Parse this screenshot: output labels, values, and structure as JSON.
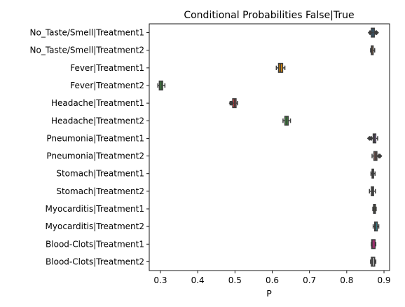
{
  "chart_data": {
    "type": "boxplot",
    "title": "Conditional Probabilities False|True",
    "xlabel": "P",
    "ylabel": "",
    "xlim": [
      0.27,
      0.915
    ],
    "xticks": [
      "0.3",
      "0.4",
      "0.5",
      "0.6",
      "0.7",
      "0.8",
      "0.9"
    ],
    "xtick_values": [
      0.3,
      0.4,
      0.5,
      0.6,
      0.7,
      0.8,
      0.9
    ],
    "orientation": "horizontal",
    "grid": false,
    "categories": [
      "No_Taste/Smell|Treatment1",
      "No_Taste/Smell|Treatment2",
      "Fever|Treatment1",
      "Fever|Treatment2",
      "Headache|Treatment1",
      "Headache|Treatment2",
      "Pneumonia|Treatment1",
      "Pneumonia|Treatment2",
      "Stomach|Treatment1",
      "Stomach|Treatment2",
      "Myocarditis|Treatment1",
      "Myocarditis|Treatment2",
      "Blood-Clots|Treatment1",
      "Blood-Clots|Treatment2"
    ],
    "boxes": [
      {
        "min": 0.862,
        "q1": 0.866,
        "median": 0.87,
        "q3": 0.874,
        "max": 0.879,
        "outliers": [
          0.863,
          0.878,
          0.88
        ],
        "color": "#3274a1"
      },
      {
        "min": 0.864,
        "q1": 0.866,
        "median": 0.868,
        "q3": 0.871,
        "max": 0.875,
        "outliers": [],
        "color": "#e1812c"
      },
      {
        "min": 0.611,
        "q1": 0.617,
        "median": 0.622,
        "q3": 0.628,
        "max": 0.634,
        "outliers": [],
        "color": "#d4860b"
      },
      {
        "min": 0.293,
        "q1": 0.297,
        "median": 0.302,
        "q3": 0.306,
        "max": 0.312,
        "outliers": [],
        "color": "#3a923a"
      },
      {
        "min": 0.487,
        "q1": 0.494,
        "median": 0.499,
        "q3": 0.503,
        "max": 0.507,
        "outliers": [
          0.49,
          0.491
        ],
        "color": "#c03d3e"
      },
      {
        "min": 0.629,
        "q1": 0.634,
        "median": 0.638,
        "q3": 0.643,
        "max": 0.649,
        "outliers": [],
        "color": "#3a923a"
      },
      {
        "min": 0.866,
        "q1": 0.871,
        "median": 0.874,
        "q3": 0.878,
        "max": 0.883,
        "outliers": [
          0.861,
          0.865
        ],
        "color": "#9372b2"
      },
      {
        "min": 0.868,
        "q1": 0.873,
        "median": 0.877,
        "q3": 0.881,
        "max": 0.886,
        "outliers": [
          0.887,
          0.889
        ],
        "color": "#845b53"
      },
      {
        "min": 0.865,
        "q1": 0.868,
        "median": 0.87,
        "q3": 0.872,
        "max": 0.876,
        "outliers": [],
        "color": "#d684bd"
      },
      {
        "min": 0.861,
        "q1": 0.866,
        "median": 0.869,
        "q3": 0.872,
        "max": 0.877,
        "outliers": [],
        "color": "#7f7f7f"
      },
      {
        "min": 0.87,
        "q1": 0.872,
        "median": 0.874,
        "q3": 0.877,
        "max": 0.879,
        "outliers": [],
        "color": "#a9aa35"
      },
      {
        "min": 0.871,
        "q1": 0.875,
        "median": 0.878,
        "q3": 0.882,
        "max": 0.886,
        "outliers": [],
        "color": "#2ea5b3"
      },
      {
        "min": 0.866,
        "q1": 0.867,
        "median": 0.87,
        "q3": 0.876,
        "max": 0.878,
        "outliers": [],
        "color": "#d6278b"
      },
      {
        "min": 0.864,
        "q1": 0.866,
        "median": 0.869,
        "q3": 0.875,
        "max": 0.878,
        "outliers": [],
        "color": "#b0b0b0"
      }
    ]
  }
}
